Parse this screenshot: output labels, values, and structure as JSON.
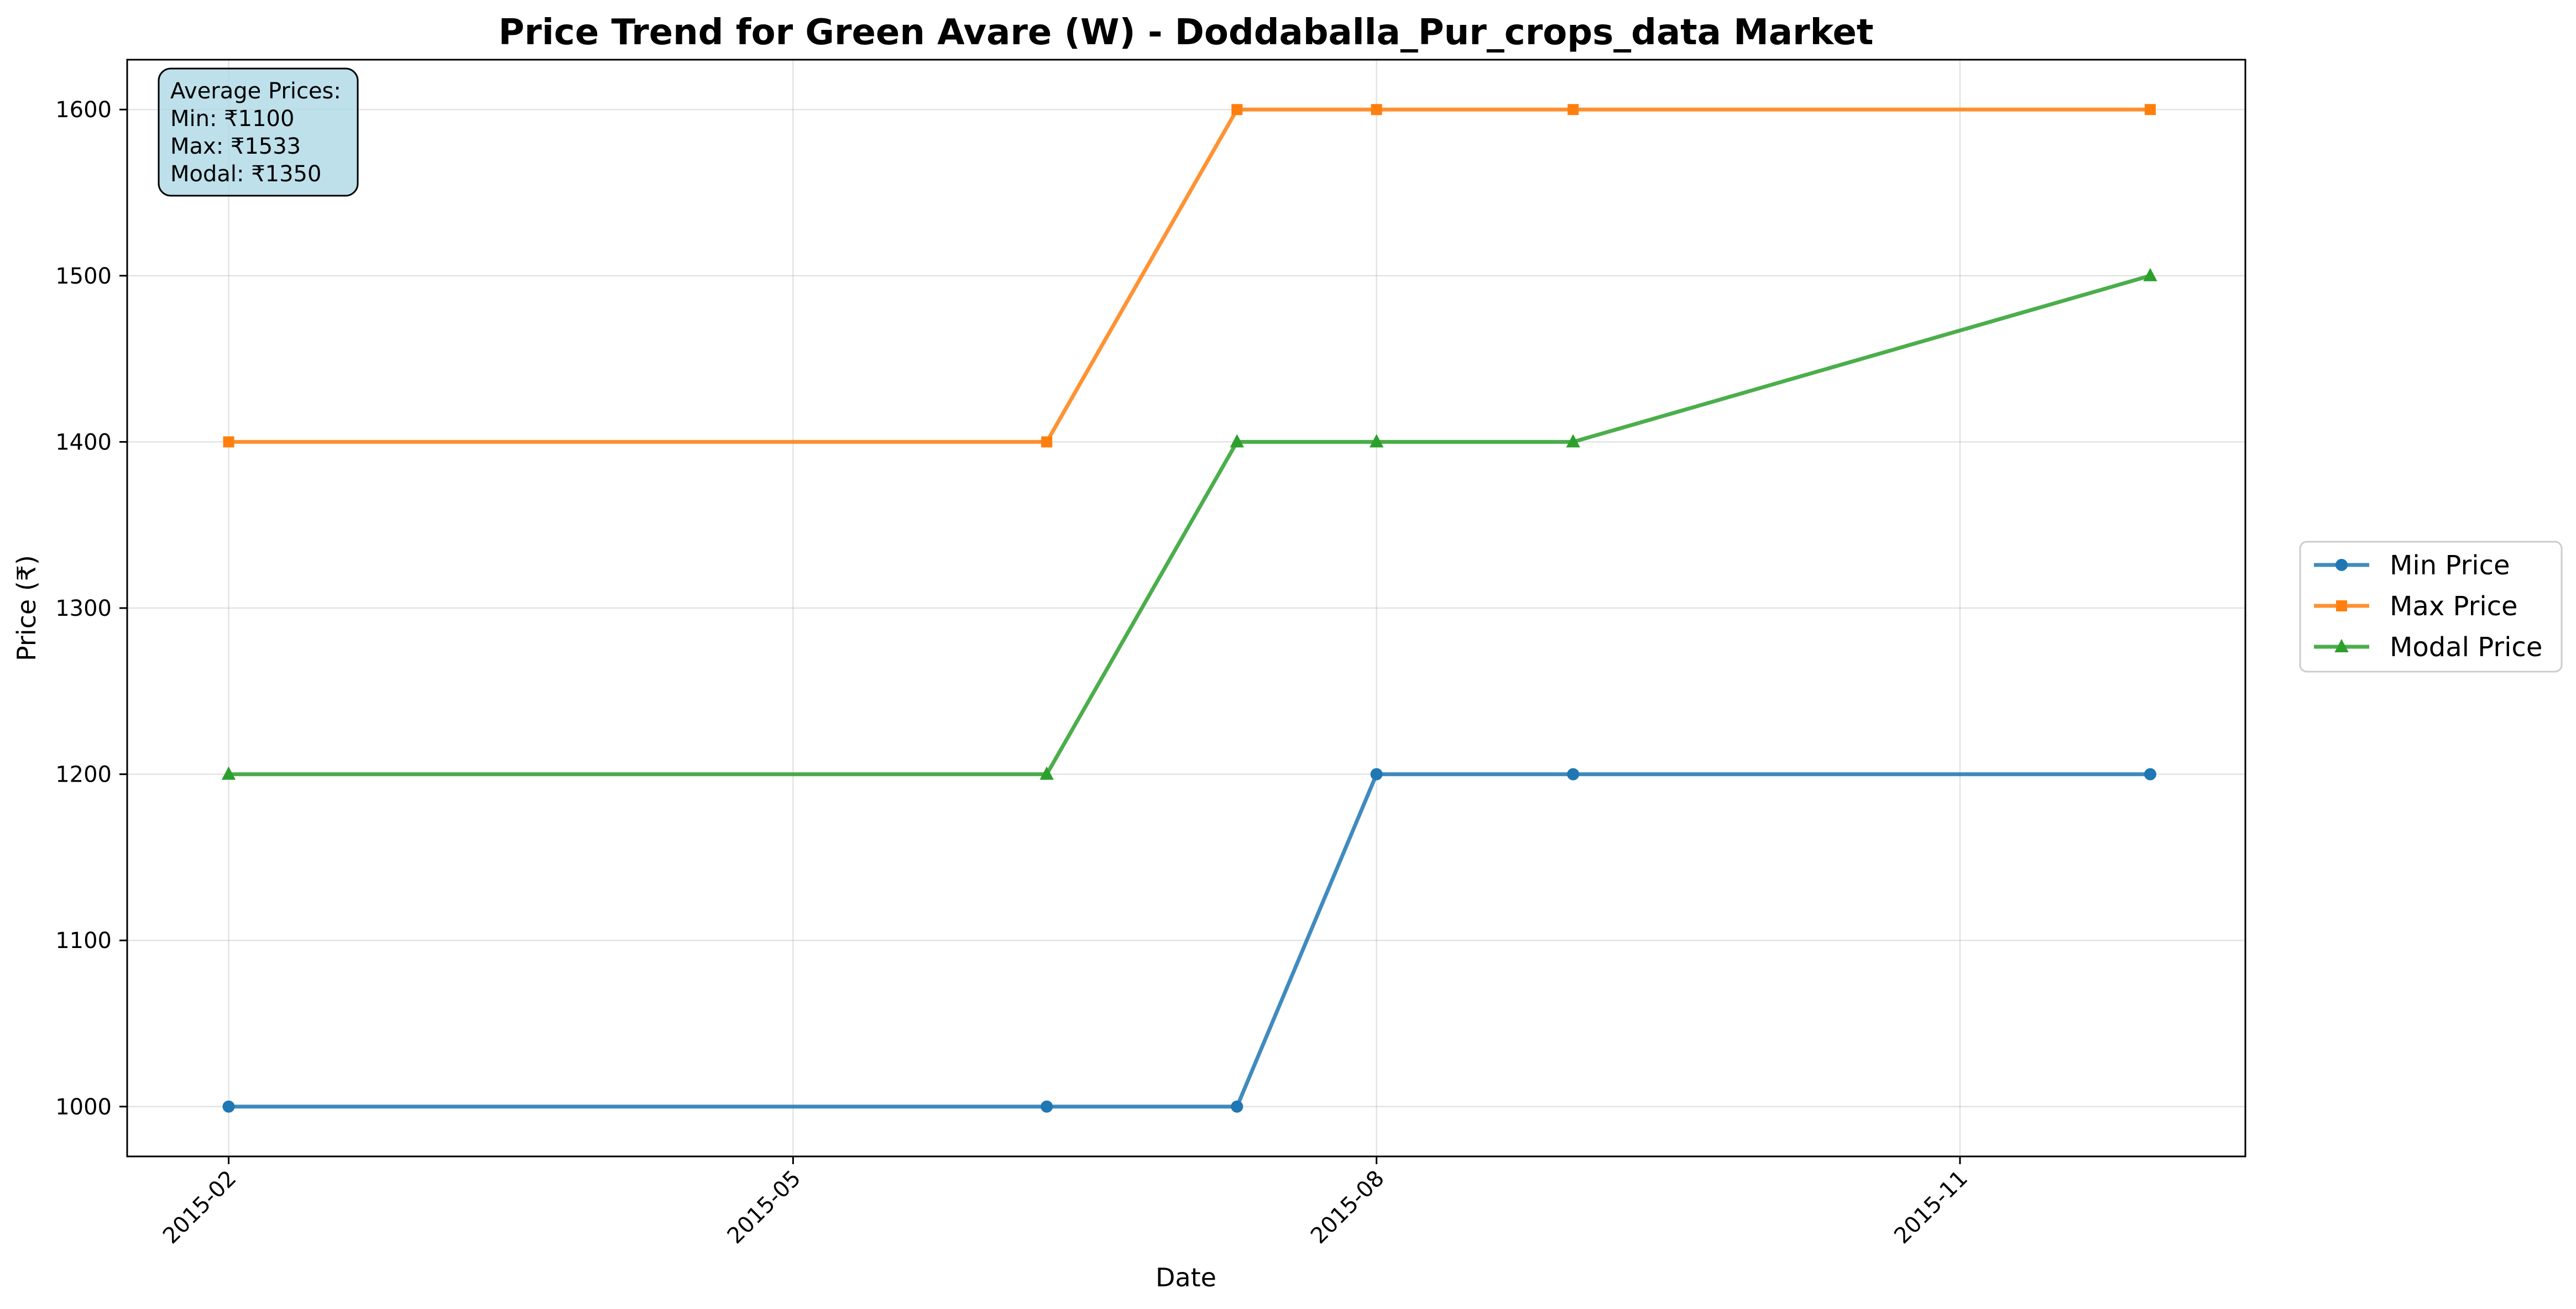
{
  "chart_data": {
    "type": "line",
    "title": "Price Trend for Green Avare (W) - Doddaballa_Pur_crops_data Market",
    "xlabel": "Date",
    "ylabel": "Price (₹)",
    "x": [
      "2015-02-01",
      "2015-06-10",
      "2015-07-10",
      "2015-08-01",
      "2015-09-01",
      "2015-12-01"
    ],
    "x_ticks": [
      {
        "date": "2015-02-01",
        "label": "2015-02"
      },
      {
        "date": "2015-05-01",
        "label": "2015-05"
      },
      {
        "date": "2015-08-01",
        "label": "2015-08"
      },
      {
        "date": "2015-11-01",
        "label": "2015-11"
      }
    ],
    "xlim": [
      "2015-01-16",
      "2015-12-16"
    ],
    "ylim": [
      970,
      1630
    ],
    "y_ticks": [
      1000,
      1100,
      1200,
      1300,
      1400,
      1500,
      1600
    ],
    "grid": true,
    "legend_position": "outside-right",
    "series": [
      {
        "name": "Min Price",
        "color": "#1f77b4",
        "marker": "circle",
        "values": [
          1000,
          1000,
          1000,
          1200,
          1200,
          1200
        ]
      },
      {
        "name": "Max Price",
        "color": "#ff7f0e",
        "marker": "square",
        "values": [
          1400,
          1400,
          1600,
          1600,
          1600,
          1600
        ]
      },
      {
        "name": "Modal Price",
        "color": "#2ca02c",
        "marker": "triangle",
        "values": [
          1200,
          1200,
          1400,
          1400,
          1400,
          1500
        ]
      }
    ],
    "stats_box": {
      "header": "Average Prices:",
      "lines": [
        "Min: ₹1100",
        "Max: ₹1533",
        "Modal: ₹1350"
      ],
      "background": "#add8e6"
    }
  }
}
